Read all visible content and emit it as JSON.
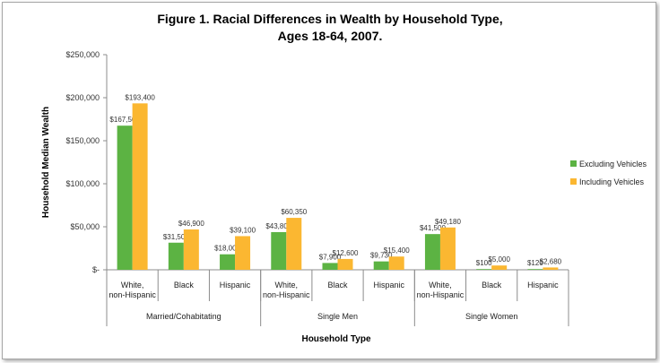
{
  "chart_data": {
    "type": "bar",
    "title": [
      "Figure 1. Racial Differences in Wealth by Household Type,",
      "Ages 18-64, 2007."
    ],
    "xlabel": "Household Type",
    "ylabel": "Household Median Wealth",
    "ylim": [
      0,
      250000
    ],
    "yticks": [
      0,
      50000,
      100000,
      150000,
      200000,
      250000
    ],
    "ytick_labels": [
      "$-",
      "$50,000",
      "$100,000",
      "$150,000",
      "$200,000",
      "$250,000"
    ],
    "groups": [
      {
        "label": "Married/Cohabitating",
        "categories": [
          "White, non-Hispanic",
          "Black",
          "Hispanic"
        ]
      },
      {
        "label": "Single Men",
        "categories": [
          "White, non-Hispanic",
          "Black",
          "Hispanic"
        ]
      },
      {
        "label": "Single Women",
        "categories": [
          "White, non-Hispanic",
          "Black",
          "Hispanic"
        ]
      }
    ],
    "series": [
      {
        "name": "Excluding Vehicles",
        "color": "#5cb343",
        "values": [
          167500,
          31500,
          18000,
          43800,
          7900,
          9730,
          41500,
          100,
          120
        ],
        "labels": [
          "$167,500",
          "$31,500",
          "$18,000",
          "$43,800",
          "$7,900",
          "$9,730",
          "$41,500",
          "$100",
          "$120"
        ]
      },
      {
        "name": "Including Vehicles",
        "color": "#fbb731",
        "values": [
          193400,
          46900,
          39100,
          60350,
          12600,
          15400,
          49180,
          5000,
          2680
        ],
        "labels": [
          "$193,400",
          "$46,900",
          "$39,100",
          "$60,350",
          "$12,600",
          "$15,400",
          "$49,180",
          "$5,000",
          "$2,680"
        ]
      }
    ],
    "legend_position": "right",
    "grid": false
  }
}
